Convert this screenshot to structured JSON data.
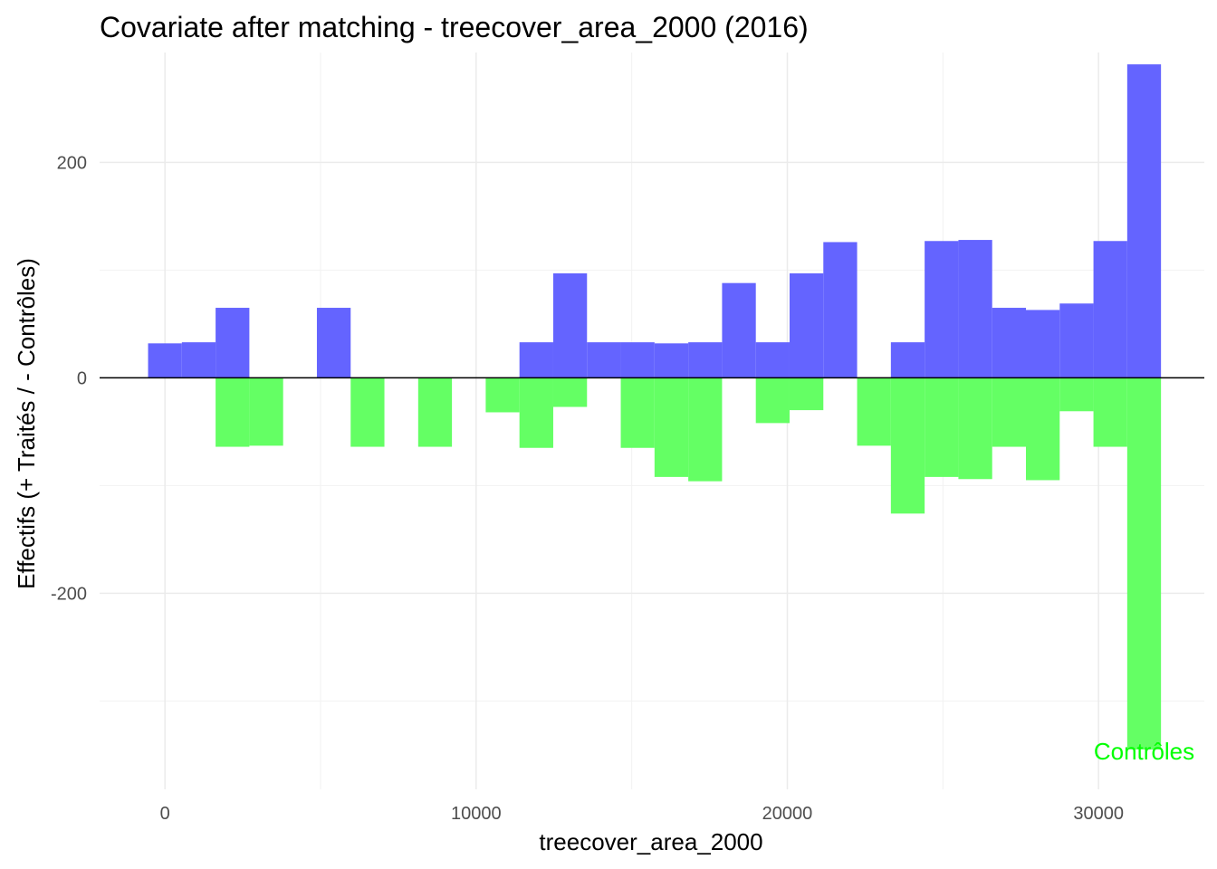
{
  "chart_data": {
    "type": "bar",
    "title": "Covariate after matching - treecover_area_2000 (2016)",
    "xlabel": "treecover_area_2000",
    "ylabel": "Effectifs (+ Traités / - Contrôles)",
    "xlim": [
      -2100,
      33400
    ],
    "ylim": [
      -382,
      302
    ],
    "x_ticks": [
      0,
      10000,
      20000,
      30000
    ],
    "x_tick_labels": [
      "0",
      "10000",
      "20000",
      "30000"
    ],
    "y_ticks": [
      -200,
      0,
      200
    ],
    "y_tick_labels": [
      "-200",
      "0",
      "200"
    ],
    "x_minor_gridlines": [
      5000,
      15000,
      25000
    ],
    "y_minor_gridlines": [
      -300,
      -100,
      100
    ],
    "grid": true,
    "legend": "none",
    "zero_line": 0,
    "bin_width": 1085,
    "bins": [
      0,
      1085,
      2170,
      3255,
      4340,
      5425,
      6510,
      7595,
      8680,
      9765,
      10850,
      11935,
      13020,
      14105,
      15190,
      16275,
      17360,
      18445,
      19530,
      20615,
      21700,
      22785,
      23870,
      24955,
      26040,
      27125,
      28210,
      29295,
      30380,
      31465
    ],
    "series": [
      {
        "name": "Traités",
        "color": "#6464ff",
        "values": [
          32,
          33,
          65,
          0,
          0,
          65,
          0,
          0,
          0,
          0,
          0,
          33,
          97,
          33,
          33,
          32,
          33,
          88,
          33,
          97,
          126,
          0,
          33,
          127,
          128,
          65,
          63,
          69,
          127,
          291
        ]
      },
      {
        "name": "Contrôles",
        "color": "#64ff64",
        "values": [
          0,
          0,
          -64,
          -63,
          0,
          0,
          -64,
          0,
          -64,
          0,
          -32,
          -65,
          -27,
          0,
          -65,
          -92,
          -96,
          0,
          -42,
          -30,
          0,
          -63,
          -126,
          -92,
          -94,
          -64,
          -95,
          -31,
          -64,
          -345
        ]
      }
    ],
    "annotations": [
      {
        "text": "Contrôles",
        "x": 31465,
        "y": -345,
        "color": "#00ff00"
      }
    ]
  }
}
